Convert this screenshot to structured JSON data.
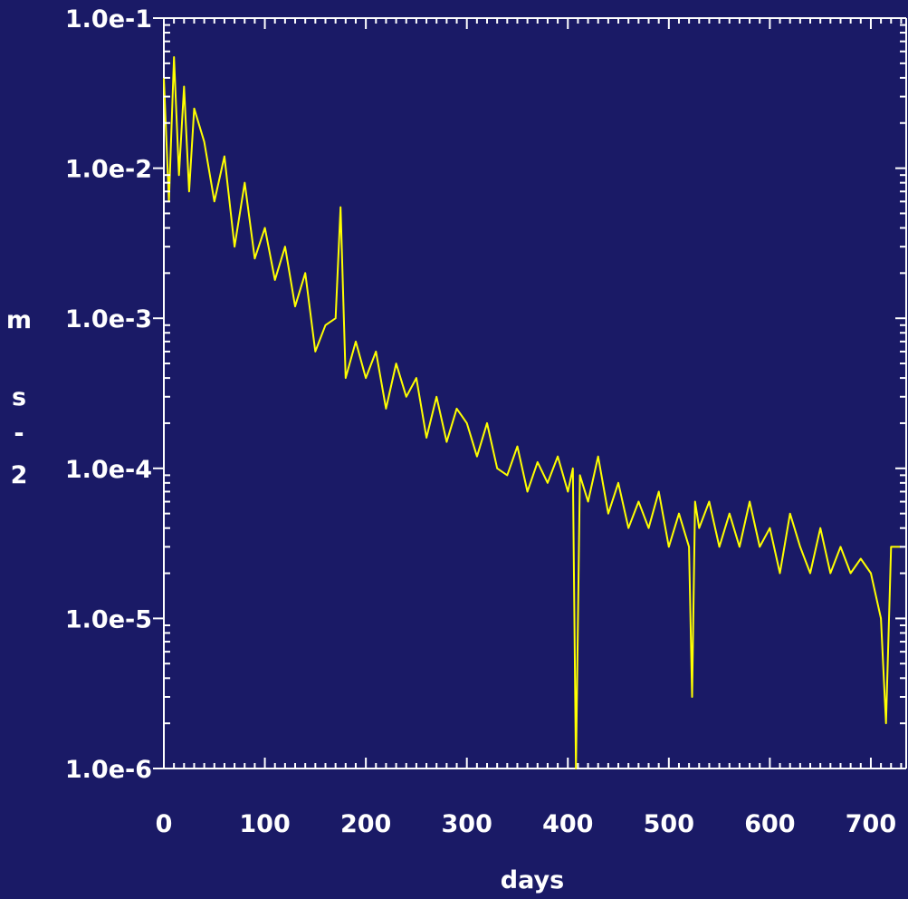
{
  "colors": {
    "background": "#1a1a66",
    "axis": "#ffffff",
    "series": "#ffff00",
    "text": "#ffffff"
  },
  "chart_data": {
    "type": "line",
    "title": "",
    "xlabel": "days",
    "ylabel": "m s - 2",
    "ylabel_parts": [
      "m",
      "s",
      "-",
      "2"
    ],
    "xscale": "linear",
    "yscale": "log",
    "xlim": [
      0,
      735
    ],
    "ylim": [
      1e-06,
      0.1
    ],
    "grid": false,
    "legend": "none",
    "x_tick_labels": [
      "0",
      "100",
      "200",
      "300",
      "400",
      "500",
      "600",
      "700"
    ],
    "x_ticks": [
      0,
      100,
      200,
      300,
      400,
      500,
      600,
      700
    ],
    "y_tick_labels": [
      "1.0e-6",
      "1.0e-5",
      "1.0e-4",
      "1.0e-3",
      "1.0e-2",
      "1.0e-1"
    ],
    "y_ticks": [
      1e-06,
      1e-05,
      0.0001,
      0.001,
      0.01,
      0.1
    ],
    "series": [
      {
        "x": [
          0,
          5,
          10,
          15,
          20,
          25,
          30,
          40,
          50,
          60,
          70,
          80,
          90,
          100,
          110,
          120,
          130,
          140,
          150,
          160,
          170,
          175,
          180,
          190,
          200,
          210,
          220,
          230,
          240,
          250,
          260,
          270,
          280,
          290,
          300,
          310,
          320,
          330,
          340,
          350,
          360,
          370,
          380,
          390,
          400,
          405,
          408,
          412,
          420,
          430,
          440,
          450,
          460,
          470,
          480,
          490,
          500,
          510,
          520,
          523,
          526,
          530,
          540,
          550,
          560,
          570,
          580,
          590,
          600,
          610,
          620,
          630,
          640,
          650,
          660,
          670,
          680,
          690,
          700,
          710,
          715,
          720,
          730
        ],
        "y": [
          0.04,
          0.006,
          0.055,
          0.009,
          0.035,
          0.007,
          0.025,
          0.015,
          0.006,
          0.012,
          0.003,
          0.008,
          0.0025,
          0.004,
          0.0018,
          0.003,
          0.0012,
          0.002,
          0.0006,
          0.0009,
          0.001,
          0.0055,
          0.0004,
          0.0007,
          0.0004,
          0.0006,
          0.00025,
          0.0005,
          0.0003,
          0.0004,
          0.00016,
          0.0003,
          0.00015,
          0.00025,
          0.0002,
          0.00012,
          0.0002,
          0.0001,
          9e-05,
          0.00014,
          7e-05,
          0.00011,
          8e-05,
          0.00012,
          7e-05,
          0.0001,
          1e-06,
          9e-05,
          6e-05,
          0.00012,
          5e-05,
          8e-05,
          4e-05,
          6e-05,
          4e-05,
          7e-05,
          3e-05,
          5e-05,
          3e-05,
          3e-06,
          6e-05,
          4e-05,
          6e-05,
          3e-05,
          5e-05,
          3e-05,
          6e-05,
          3e-05,
          4e-05,
          2e-05,
          5e-05,
          3e-05,
          2e-05,
          4e-05,
          2e-05,
          3e-05,
          2e-05,
          2.5e-05,
          2e-05,
          1e-05,
          2e-06,
          3e-05,
          3e-05
        ]
      }
    ]
  }
}
